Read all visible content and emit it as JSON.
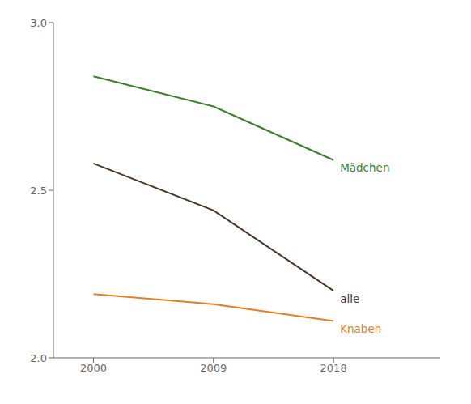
{
  "chart_data": {
    "type": "line",
    "x": [
      2000,
      2009,
      2018
    ],
    "series": [
      {
        "name": "Mädchen",
        "color": "#3a7d2c",
        "values": [
          2.84,
          2.75,
          2.59
        ]
      },
      {
        "name": "alle",
        "color": "#4a3728",
        "values": [
          2.58,
          2.44,
          2.2
        ]
      },
      {
        "name": "Knaben",
        "color": "#e08020",
        "values": [
          2.19,
          2.16,
          2.11
        ]
      }
    ],
    "xlim": [
      1997,
      2026
    ],
    "xticks": [
      2000,
      2009,
      2018
    ],
    "ylim": [
      2.0,
      3.0
    ],
    "yticks": [
      {
        "value": 2.0,
        "label": "2.0"
      },
      {
        "value": 2.5,
        "label": "2.5"
      },
      {
        "value": 3.0,
        "label": "3.0"
      }
    ],
    "grid": false
  }
}
